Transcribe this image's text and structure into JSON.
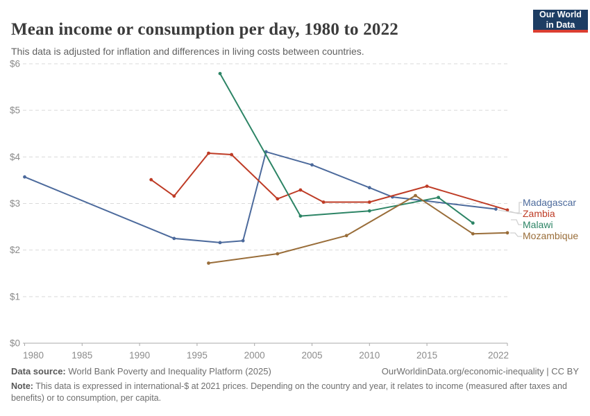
{
  "header": {
    "title": "Mean income or consumption per day, 1980 to 2022",
    "subtitle": "This data is adjusted for inflation and differences in living costs between countries.",
    "logo": {
      "line1": "Our World",
      "line2": "in Data",
      "bg": "#1d3d63",
      "stripe": "#dc3e31"
    }
  },
  "chart_data": {
    "type": "line",
    "title": "Mean income or consumption per day, 1980 to 2022",
    "xlabel": "",
    "ylabel": "",
    "xlim": [
      1980,
      2022
    ],
    "ylim": [
      0,
      6
    ],
    "x_ticks": [
      1980,
      1985,
      1990,
      1995,
      2000,
      2005,
      2010,
      2015,
      2022
    ],
    "y_tick_values": [
      0,
      1,
      2,
      3,
      4,
      5,
      6
    ],
    "y_tick_labels": [
      "$0",
      "$1",
      "$2",
      "$3",
      "$4",
      "$5",
      "$6"
    ],
    "grid": "horizontal-dashed",
    "legend_position": "right-edge-labels",
    "series": [
      {
        "name": "Madagascar",
        "color": "#4C6A9C",
        "points": [
          [
            1980,
            3.57
          ],
          [
            1993,
            2.25
          ],
          [
            1997,
            2.16
          ],
          [
            1999,
            2.2
          ],
          [
            2001,
            4.11
          ],
          [
            2005,
            3.83
          ],
          [
            2010,
            3.34
          ],
          [
            2012,
            3.14
          ],
          [
            2021,
            2.88
          ]
        ]
      },
      {
        "name": "Zambia",
        "color": "#BE3B25",
        "points": [
          [
            1991,
            3.51
          ],
          [
            1993,
            3.16
          ],
          [
            1996,
            4.08
          ],
          [
            1998,
            4.05
          ],
          [
            2002,
            3.1
          ],
          [
            2004,
            3.29
          ],
          [
            2006,
            3.03
          ],
          [
            2010,
            3.03
          ],
          [
            2015,
            3.37
          ],
          [
            2022,
            2.86
          ]
        ]
      },
      {
        "name": "Malawi",
        "color": "#2C8465",
        "points": [
          [
            1997,
            5.79
          ],
          [
            2004,
            2.73
          ],
          [
            2010,
            2.84
          ],
          [
            2016,
            3.13
          ],
          [
            2019,
            2.58
          ]
        ]
      },
      {
        "name": "Mozambique",
        "color": "#996D39",
        "points": [
          [
            1996,
            1.72
          ],
          [
            2002,
            1.92
          ],
          [
            2008,
            2.31
          ],
          [
            2014,
            3.17
          ],
          [
            2019,
            2.35
          ],
          [
            2022,
            2.37
          ]
        ]
      }
    ]
  },
  "footer": {
    "source_label": "Data source:",
    "source_text": " World Bank Poverty and Inequality Platform (2025)",
    "credit": "OurWorldinData.org/economic-inequality | CC BY",
    "note_label": "Note:",
    "note_text": " This data is expressed in international-$ at 2021 prices. Depending on the country and year, it relates to income (measured after taxes and benefits) or to consumption, per capita."
  }
}
